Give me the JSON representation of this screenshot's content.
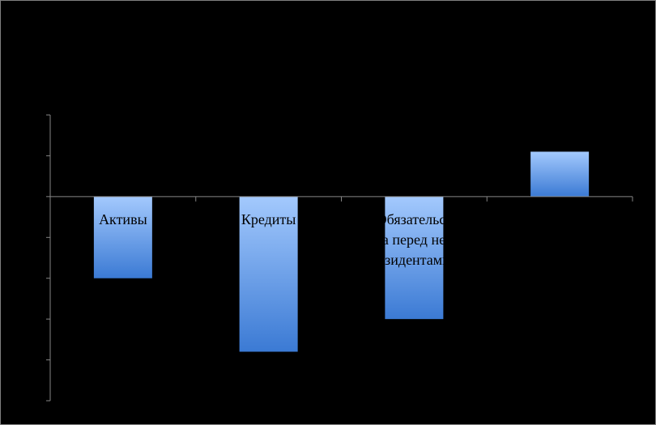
{
  "chart_data": {
    "type": "bar",
    "categories": [
      "Активы",
      "Кредиты",
      "Обязательства перед нерезидентами",
      null
    ],
    "values": [
      -2,
      -3.8,
      -3,
      1.1
    ],
    "ylim": [
      -5,
      2
    ],
    "yticks": [
      -5,
      -4,
      -3,
      -2,
      -1,
      0,
      1,
      2
    ],
    "color_top": "#a3c9fd",
    "color_bottom": "#3b7ad4"
  }
}
